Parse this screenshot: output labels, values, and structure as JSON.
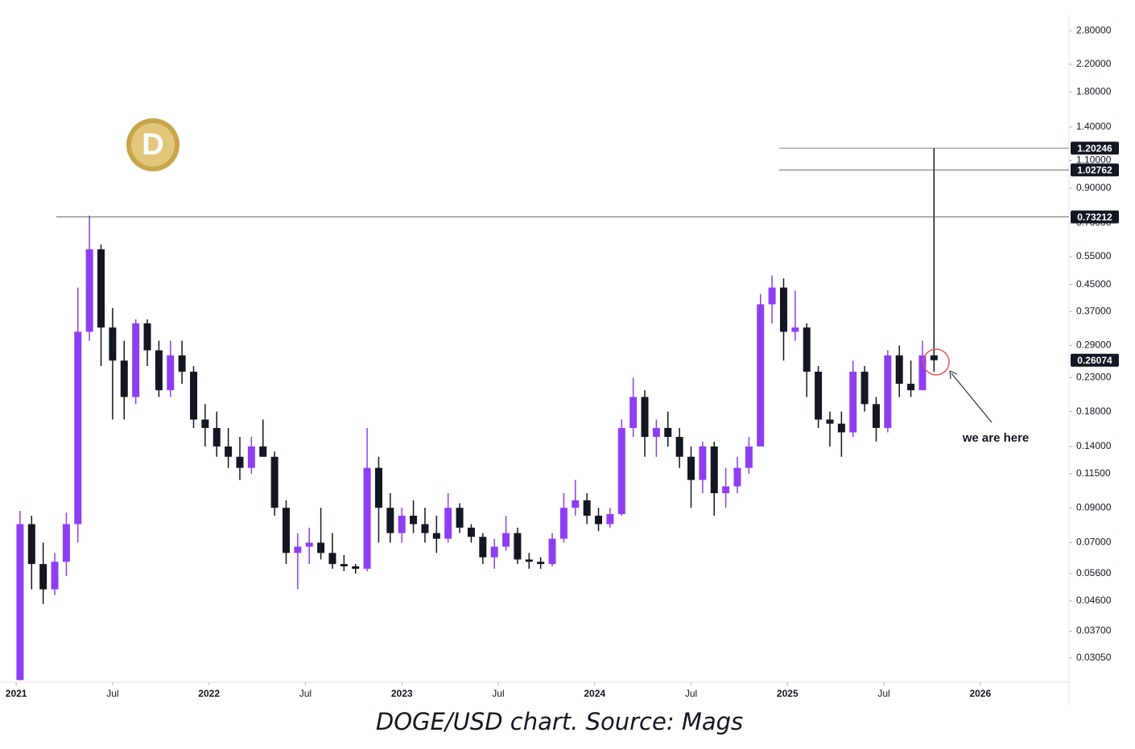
{
  "chart_data": {
    "type": "candlestick",
    "caption": "DOGE/USD chart. Source: Mags",
    "annotation": "we are here",
    "log_scale": true,
    "up_color": "#8e3ef2",
    "down_color": "#131722",
    "xlim": [
      2020.916,
      2026.46
    ],
    "ylim": [
      0.0256,
      3.15
    ],
    "xticks": [
      2021,
      {
        "value": 2021.5,
        "label": "Jul"
      },
      2022,
      {
        "value": 2022.5,
        "label": "Jul"
      },
      2023,
      {
        "value": 2023.5,
        "label": "Jul"
      },
      2024,
      {
        "value": 2024.5,
        "label": "Jul"
      },
      2025,
      {
        "value": 2025.5,
        "label": "Jul"
      },
      2026
    ],
    "yticks": [
      {
        "value": 2.8,
        "label": "2.80000"
      },
      {
        "value": 2.2,
        "label": "2.20000"
      },
      {
        "value": 1.8,
        "label": "1.80000"
      },
      {
        "value": 1.4,
        "label": "1.40000"
      },
      {
        "value": 1.1,
        "label": "1.10000"
      },
      {
        "value": 0.9,
        "label": "0.90000"
      },
      {
        "value": 0.7,
        "label": "0.70000"
      },
      {
        "value": 0.55,
        "label": "0.55000"
      },
      {
        "value": 0.45,
        "label": "0.45000"
      },
      {
        "value": 0.37,
        "label": "0.37000"
      },
      {
        "value": 0.29,
        "label": "0.29000"
      },
      {
        "value": 0.23,
        "label": "0.23000"
      },
      {
        "value": 0.18,
        "label": "0.18000"
      },
      {
        "value": 0.14,
        "label": "0.14000"
      },
      {
        "value": 0.115,
        "label": "0.11500"
      },
      {
        "value": 0.09,
        "label": "0.09000"
      },
      {
        "value": 0.07,
        "label": "0.07000"
      },
      {
        "value": 0.056,
        "label": "0.05600"
      },
      {
        "value": 0.046,
        "label": "0.04600"
      },
      {
        "value": 0.037,
        "label": "0.03700"
      },
      {
        "value": 0.0305,
        "label": "0.03050"
      }
    ],
    "levels": [
      0.73212,
      1.02762,
      1.20246
    ],
    "last_price": 0.26074,
    "x": [
      2021.02,
      2021.08,
      2021.14,
      2021.2,
      2021.26,
      2021.32,
      2021.38,
      2021.44,
      2021.5,
      2021.56,
      2021.62,
      2021.68,
      2021.74,
      2021.8,
      2021.86,
      2021.92,
      2021.98,
      2022.04,
      2022.1,
      2022.16,
      2022.22,
      2022.28,
      2022.34,
      2022.4,
      2022.46,
      2022.52,
      2022.58,
      2022.64,
      2022.7,
      2022.76,
      2022.82,
      2022.88,
      2022.94,
      2023.0,
      2023.06,
      2023.12,
      2023.18,
      2023.24,
      2023.3,
      2023.36,
      2023.42,
      2023.48,
      2023.54,
      2023.6,
      2023.66,
      2023.72,
      2023.78,
      2023.84,
      2023.9,
      2023.96,
      2024.02,
      2024.08,
      2024.14,
      2024.2,
      2024.26,
      2024.32,
      2024.38,
      2024.44,
      2024.5,
      2024.56,
      2024.62,
      2024.68,
      2024.74,
      2024.8,
      2024.86,
      2024.92,
      2024.98,
      2025.04,
      2025.1,
      2025.16,
      2025.22,
      2025.28,
      2025.34,
      2025.4,
      2025.46,
      2025.52,
      2025.58,
      2025.64,
      2025.7,
      2025.76
    ],
    "open": [
      0.026,
      0.08,
      0.06,
      0.05,
      0.061,
      0.08,
      0.32,
      0.58,
      0.33,
      0.26,
      0.2,
      0.34,
      0.28,
      0.21,
      0.27,
      0.24,
      0.17,
      0.16,
      0.14,
      0.13,
      0.12,
      0.14,
      0.13,
      0.09,
      0.065,
      0.068,
      0.07,
      0.065,
      0.06,
      0.059,
      0.058,
      0.12,
      0.09,
      0.075,
      0.085,
      0.08,
      0.075,
      0.072,
      0.09,
      0.078,
      0.073,
      0.063,
      0.068,
      0.075,
      0.062,
      0.061,
      0.06,
      0.072,
      0.09,
      0.095,
      0.085,
      0.08,
      0.086,
      0.16,
      0.2,
      0.15,
      0.16,
      0.15,
      0.13,
      0.11,
      0.14,
      0.1,
      0.105,
      0.12,
      0.14,
      0.39,
      0.44,
      0.32,
      0.33,
      0.24,
      0.17,
      0.165,
      0.155,
      0.24,
      0.19,
      0.16,
      0.27,
      0.22,
      0.21,
      0.27
    ],
    "high": [
      0.088,
      0.085,
      0.07,
      0.065,
      0.087,
      0.44,
      0.74,
      0.6,
      0.38,
      0.3,
      0.35,
      0.35,
      0.3,
      0.3,
      0.3,
      0.25,
      0.19,
      0.18,
      0.16,
      0.15,
      0.15,
      0.17,
      0.135,
      0.095,
      0.075,
      0.078,
      0.09,
      0.075,
      0.064,
      0.06,
      0.16,
      0.13,
      0.1,
      0.09,
      0.095,
      0.09,
      0.085,
      0.1,
      0.093,
      0.08,
      0.075,
      0.072,
      0.085,
      0.078,
      0.065,
      0.063,
      0.075,
      0.1,
      0.11,
      0.1,
      0.09,
      0.09,
      0.17,
      0.23,
      0.21,
      0.17,
      0.18,
      0.16,
      0.14,
      0.145,
      0.145,
      0.12,
      0.13,
      0.15,
      0.42,
      0.48,
      0.47,
      0.43,
      0.34,
      0.25,
      0.18,
      0.18,
      0.26,
      0.25,
      0.2,
      0.28,
      0.29,
      0.26,
      0.3,
      1.20246
    ],
    "low": [
      0.026,
      0.05,
      0.045,
      0.048,
      0.055,
      0.07,
      0.3,
      0.25,
      0.17,
      0.17,
      0.19,
      0.25,
      0.2,
      0.2,
      0.22,
      0.16,
      0.14,
      0.13,
      0.12,
      0.11,
      0.115,
      0.13,
      0.085,
      0.06,
      0.05,
      0.06,
      0.062,
      0.058,
      0.057,
      0.056,
      0.057,
      0.07,
      0.07,
      0.07,
      0.075,
      0.07,
      0.065,
      0.07,
      0.075,
      0.07,
      0.06,
      0.058,
      0.066,
      0.06,
      0.058,
      0.058,
      0.059,
      0.07,
      0.085,
      0.08,
      0.076,
      0.078,
      0.085,
      0.15,
      0.13,
      0.13,
      0.14,
      0.12,
      0.09,
      0.1,
      0.085,
      0.09,
      0.1,
      0.115,
      0.14,
      0.34,
      0.26,
      0.3,
      0.2,
      0.16,
      0.14,
      0.13,
      0.15,
      0.18,
      0.145,
      0.155,
      0.2,
      0.2,
      0.21,
      0.24
    ],
    "close": [
      0.08,
      0.06,
      0.05,
      0.061,
      0.08,
      0.32,
      0.58,
      0.33,
      0.26,
      0.2,
      0.34,
      0.28,
      0.21,
      0.27,
      0.24,
      0.17,
      0.16,
      0.14,
      0.13,
      0.12,
      0.14,
      0.13,
      0.09,
      0.065,
      0.068,
      0.07,
      0.065,
      0.06,
      0.059,
      0.058,
      0.12,
      0.09,
      0.075,
      0.085,
      0.08,
      0.075,
      0.072,
      0.09,
      0.078,
      0.073,
      0.063,
      0.068,
      0.075,
      0.062,
      0.061,
      0.06,
      0.072,
      0.09,
      0.095,
      0.085,
      0.08,
      0.086,
      0.16,
      0.2,
      0.15,
      0.16,
      0.15,
      0.13,
      0.11,
      0.14,
      0.1,
      0.105,
      0.12,
      0.14,
      0.39,
      0.44,
      0.32,
      0.33,
      0.24,
      0.17,
      0.165,
      0.155,
      0.24,
      0.19,
      0.16,
      0.27,
      0.22,
      0.21,
      0.27,
      0.26074
    ]
  }
}
